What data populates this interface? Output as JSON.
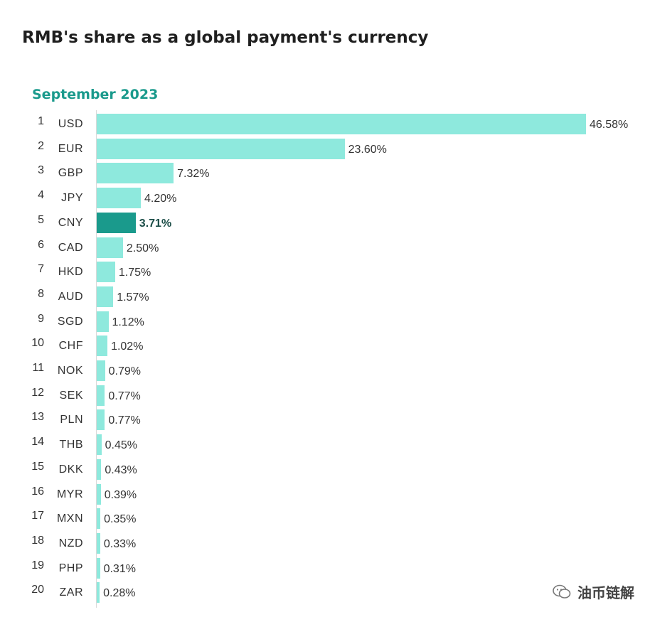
{
  "title": "RMB's share as a global payment's currency",
  "subtitle": "September 2023",
  "watermark": "油币链解",
  "colors": {
    "bar": "#8ee9dd",
    "highlight": "#1a9a8c"
  },
  "chart_data": {
    "type": "bar",
    "orientation": "horizontal",
    "title": "RMB's share as a global payment's currency",
    "subtitle": "September 2023",
    "highlight": "CNY",
    "ranks": [
      1,
      2,
      3,
      4,
      5,
      6,
      7,
      8,
      9,
      10,
      11,
      12,
      13,
      14,
      15,
      16,
      17,
      18,
      19,
      20
    ],
    "categories": [
      "USD",
      "EUR",
      "GBP",
      "JPY",
      "CNY",
      "CAD",
      "HKD",
      "AUD",
      "SGD",
      "CHF",
      "NOK",
      "SEK",
      "PLN",
      "THB",
      "DKK",
      "MYR",
      "MXN",
      "NZD",
      "PHP",
      "ZAR"
    ],
    "values": [
      46.58,
      23.6,
      7.32,
      4.2,
      3.71,
      2.5,
      1.75,
      1.57,
      1.12,
      1.02,
      0.79,
      0.77,
      0.77,
      0.45,
      0.43,
      0.39,
      0.35,
      0.33,
      0.31,
      0.28
    ],
    "labels": [
      "46.58%",
      "23.60%",
      "7.32%",
      "4.20%",
      "3.71%",
      "2.50%",
      "1.75%",
      "1.57%",
      "1.12%",
      "1.02%",
      "0.79%",
      "0.77%",
      "0.77%",
      "0.45%",
      "0.43%",
      "0.39%",
      "0.35%",
      "0.33%",
      "0.31%",
      "0.28%"
    ]
  }
}
